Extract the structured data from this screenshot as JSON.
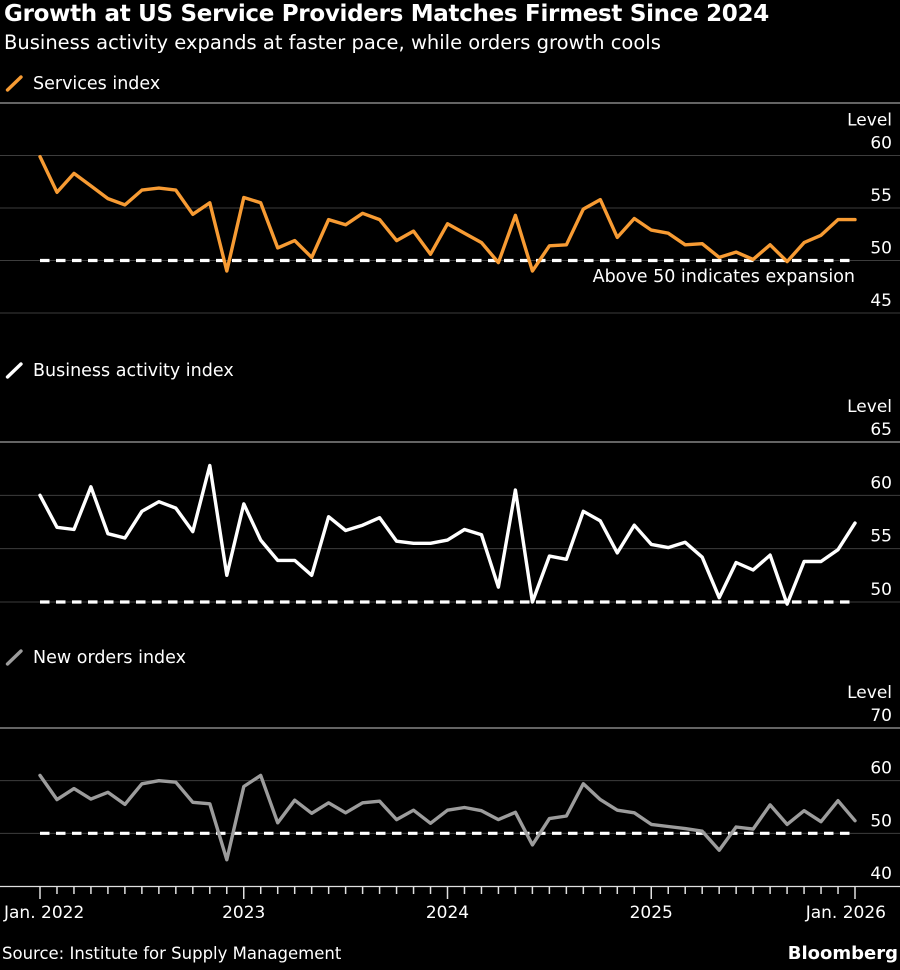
{
  "header": {
    "title": "Growth at US Service Providers Matches Firmest Since 2024",
    "subtitle": "Business activity expands at faster pace, while orders growth cools"
  },
  "footer": {
    "source": "Source: Institute for Supply Management",
    "brand": "Bloomberg"
  },
  "colors": {
    "background": "#000000",
    "grid": "#3d3d3d",
    "panel_border": "#858585",
    "axis": "#e0e0e0",
    "text": "#ffffff",
    "dashed": "#ffffff",
    "services": "#f79b33",
    "business": "#ffffff",
    "orders": "#9c9c9c"
  },
  "x_axis": {
    "labels": [
      {
        "text": "Jan. 2022",
        "month": 0
      },
      {
        "text": "2023",
        "month": 12
      },
      {
        "text": "2024",
        "month": 24
      },
      {
        "text": "2025",
        "month": 36
      },
      {
        "text": "Jan. 2026",
        "month": 48
      }
    ]
  },
  "chart_data": [
    {
      "type": "line",
      "legend": "Services index",
      "color": "#f79b33",
      "axis_label": "Level",
      "yticks": [
        60,
        55,
        50,
        45
      ],
      "y_top": 65,
      "y_bottom": 45,
      "dashed_at": 50,
      "annotation": "Above 50 indicates expansion",
      "series": {
        "start": "Jan 2022",
        "end": "Jan 2026",
        "frequency": "monthly",
        "values": [
          59.9,
          56.5,
          58.3,
          57.1,
          55.9,
          55.3,
          56.7,
          56.9,
          56.7,
          54.4,
          55.5,
          49.0,
          56.0,
          55.5,
          51.2,
          51.9,
          50.3,
          53.9,
          53.4,
          54.5,
          53.9,
          51.9,
          52.8,
          50.6,
          53.5,
          52.6,
          51.7,
          49.8,
          54.3,
          49.0,
          51.4,
          51.5,
          54.9,
          55.8,
          52.2,
          54.0,
          52.9,
          52.6,
          51.5,
          51.6,
          50.3,
          50.8,
          50.1,
          51.5,
          49.9,
          51.7,
          52.4,
          53.9,
          53.9
        ]
      }
    },
    {
      "type": "line",
      "legend": "Business activity index",
      "color": "#ffffff",
      "axis_label": "Level",
      "yticks": [
        65,
        60,
        55,
        50
      ],
      "y_top": 65,
      "y_bottom": 50,
      "dashed_at": 50,
      "annotation": "",
      "series": {
        "start": "Jan 2022",
        "end": "Jan 2026",
        "frequency": "monthly",
        "values": [
          60.0,
          57.0,
          56.8,
          60.8,
          56.4,
          56.0,
          58.5,
          59.4,
          58.8,
          56.6,
          62.8,
          52.5,
          59.2,
          55.8,
          53.9,
          53.9,
          52.5,
          58.0,
          56.7,
          57.2,
          57.9,
          55.7,
          55.5,
          55.5,
          55.8,
          56.8,
          56.3,
          51.4,
          60.5,
          50.0,
          54.3,
          54.0,
          58.5,
          57.6,
          54.6,
          57.2,
          55.4,
          55.1,
          55.6,
          54.2,
          50.4,
          53.7,
          53.0,
          54.4,
          49.8,
          53.8,
          53.8,
          54.9,
          57.4
        ]
      }
    },
    {
      "type": "line",
      "legend": "New orders index",
      "color": "#9c9c9c",
      "axis_label": "Level",
      "yticks": [
        70,
        60,
        50,
        40
      ],
      "y_top": 70,
      "y_bottom": 40,
      "dashed_at": 50,
      "annotation": "",
      "series": {
        "start": "Jan 2022",
        "end": "Jan 2026",
        "frequency": "monthly",
        "values": [
          61.0,
          56.4,
          58.5,
          56.5,
          57.8,
          55.5,
          59.4,
          60.0,
          59.7,
          55.9,
          55.6,
          45.0,
          58.9,
          61.0,
          52.0,
          56.3,
          53.8,
          55.8,
          53.9,
          55.8,
          56.1,
          52.6,
          54.4,
          51.9,
          54.4,
          54.9,
          54.3,
          52.6,
          54.0,
          47.8,
          52.8,
          53.3,
          59.4,
          56.4,
          54.4,
          53.9,
          51.7,
          51.3,
          50.9,
          50.4,
          46.8,
          51.2,
          50.8,
          55.4,
          51.7,
          54.3,
          52.2,
          56.2,
          52.4
        ]
      }
    }
  ]
}
